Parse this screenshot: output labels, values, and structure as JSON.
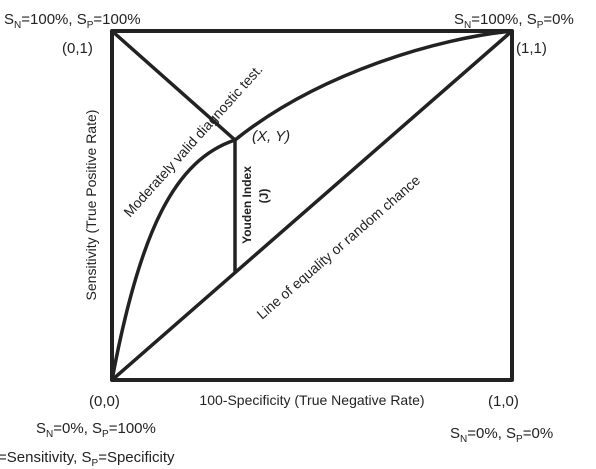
{
  "corners": {
    "top_left": {
      "coord": "(0,1)",
      "sn": {
        "S": "S",
        "sub": "N",
        "rest": "=100%, "
      },
      "sp": {
        "S": "S",
        "sub": "P",
        "rest": "=100%"
      }
    },
    "top_right": {
      "coord": "(1,1)",
      "sn": {
        "S": "S",
        "sub": "N",
        "rest": "=100%, "
      },
      "sp": {
        "S": "S",
        "sub": "P",
        "rest": "=0%"
      }
    },
    "bottom_left": {
      "coord": "(0,0)",
      "sn": {
        "S": "S",
        "sub": "N",
        "rest": "=0%, "
      },
      "sp": {
        "S": "S",
        "sub": "P",
        "rest": "=100%"
      }
    },
    "bottom_right": {
      "coord": "(1,0)",
      "sn": {
        "S": "S",
        "sub": "N",
        "rest": "=0%, "
      },
      "sp": {
        "S": "S",
        "sub": "P",
        "rest": "=0%"
      }
    }
  },
  "axes": {
    "x_label": "100-Specificity (True Negative Rate)",
    "y_label": "Sensitivity (True Positive Rate)"
  },
  "curve_label": "Moderately valid diagnostic test.",
  "diagonal_label": "Line of equality or random chance",
  "point_label": "(X, Y)",
  "youden": {
    "line1": "Youden Index",
    "line2": "(J)"
  },
  "legend": {
    "prefix": "=Sensitivity, ",
    "sp_S": "S",
    "sp_sub": "P",
    "sp_rest": "=Specificity"
  }
}
